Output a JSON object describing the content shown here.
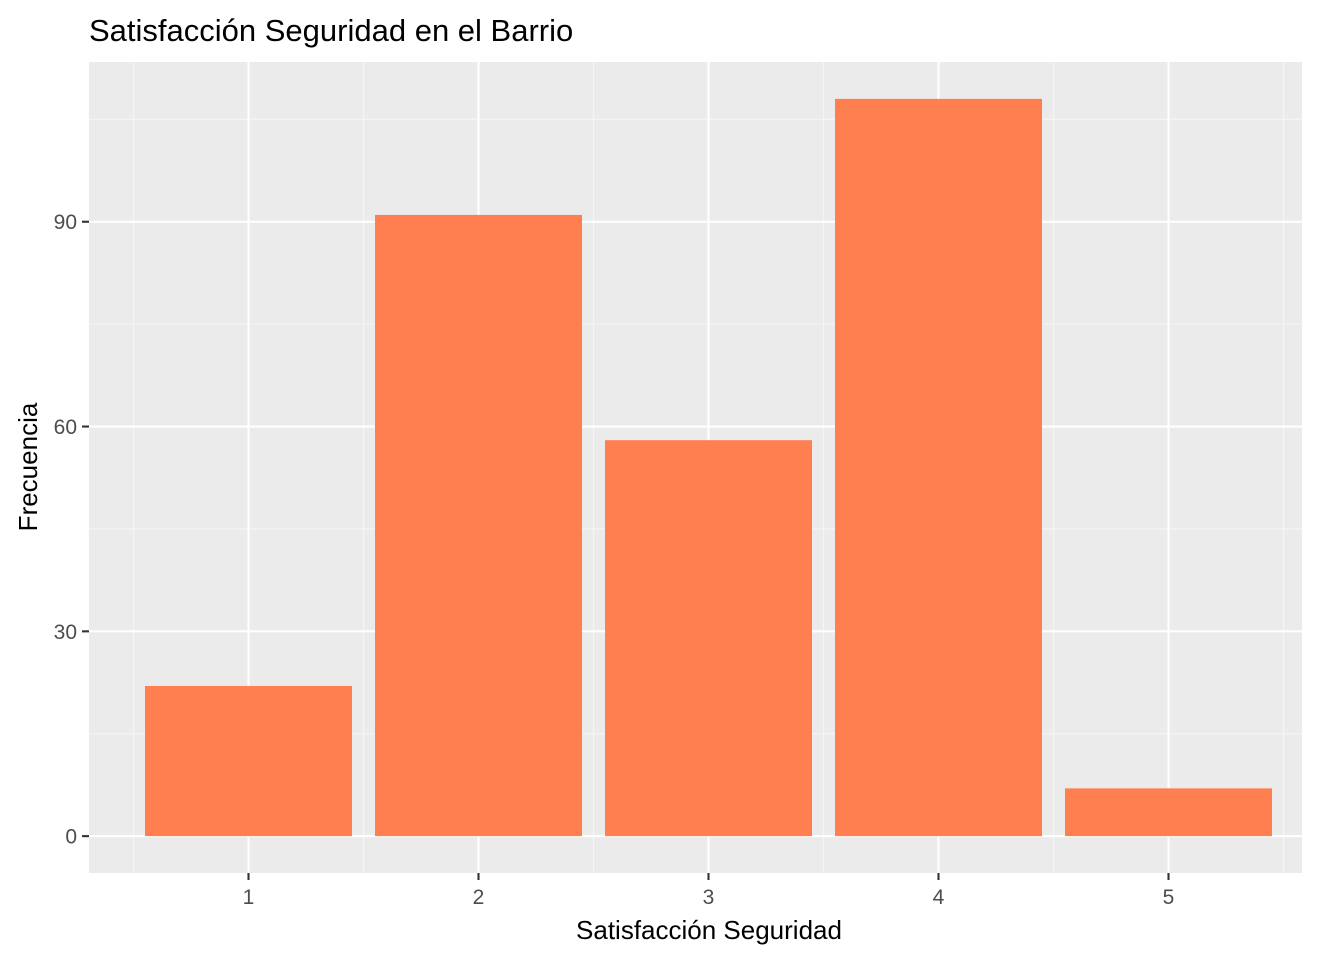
{
  "chart_data": {
    "type": "bar",
    "title": "Satisfacción Seguridad en el Barrio",
    "xlabel": "Satisfacción Seguridad",
    "ylabel": "Frecuencia",
    "categories": [
      "1",
      "2",
      "3",
      "4",
      "5"
    ],
    "values": [
      22,
      91,
      58,
      108,
      7
    ],
    "ylim": [
      -5.4,
      113.4
    ],
    "y_ticks": [
      0,
      30,
      60,
      90
    ],
    "y_tick_labels": [
      "0",
      "30",
      "60",
      "90"
    ],
    "grid": true,
    "legend": "none",
    "colors": {
      "bar": "#FF7F50",
      "panel_background": "#EBEBEB",
      "grid_major": "#FFFFFF",
      "grid_minor": "#F5F5F5",
      "tick_label": "#4D4D4D",
      "tick_mark": "#333333"
    }
  }
}
